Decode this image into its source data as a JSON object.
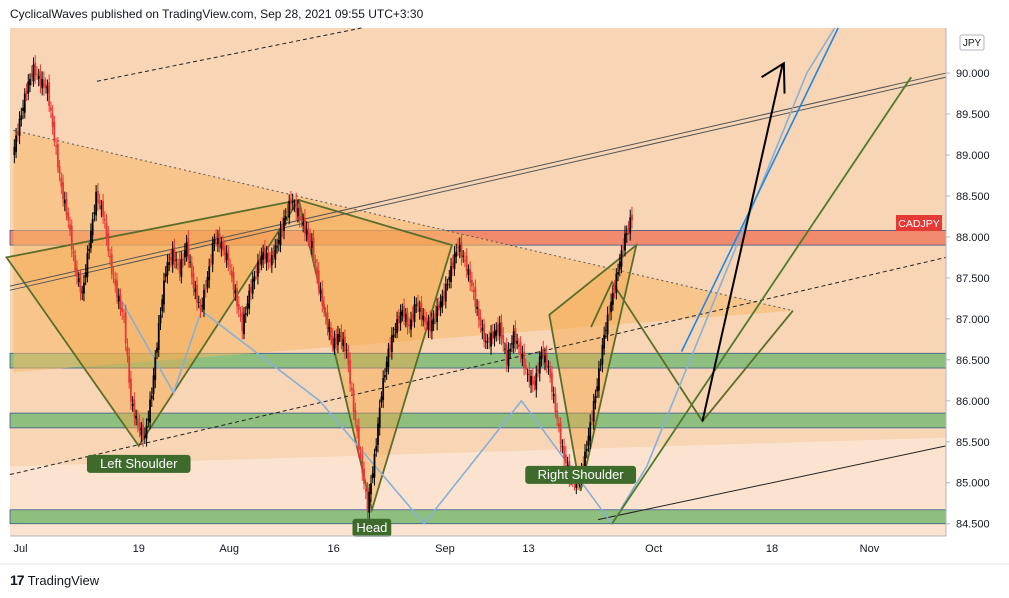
{
  "header": {
    "publisher_line": "CyclicalWaves published on TradingView.com, Sep 28, 2021 09:55 UTC+3:30"
  },
  "footer": {
    "logo_glyph": "17",
    "brand": "TradingView"
  },
  "chart_data": {
    "type": "candlestick",
    "symbol": "CADJPY",
    "currency_badge": "JPY",
    "last_price_label": "CADJPY",
    "y_ticks": [
      "90.000",
      "89.500",
      "89.000",
      "88.500",
      "88.000",
      "87.500",
      "87.000",
      "86.500",
      "86.000",
      "85.500",
      "85.000",
      "84.500"
    ],
    "y_tick_values": [
      90.0,
      89.5,
      89.0,
      88.5,
      88.0,
      87.5,
      87.0,
      86.5,
      86.0,
      85.5,
      85.0,
      84.5
    ],
    "ylim": [
      84.35,
      90.55
    ],
    "x_ticks": [
      "Jul",
      "19",
      "Aug",
      "16",
      "Sep",
      "13",
      "Oct",
      "18",
      "Nov"
    ],
    "x_tick_days": [
      0,
      18,
      31,
      46,
      62,
      74,
      92,
      109,
      123
    ],
    "xlim": [
      -0.5,
      134
    ],
    "zones": [
      {
        "name": "resistance",
        "low": 87.9,
        "high": 88.08,
        "color": "#f08a6c"
      },
      {
        "name": "support-1",
        "low": 86.4,
        "high": 86.58,
        "color": "#8fbf7f"
      },
      {
        "name": "support-2",
        "low": 85.67,
        "high": 85.85,
        "color": "#8fbf7f"
      },
      {
        "name": "support-3",
        "low": 84.5,
        "high": 84.67,
        "color": "#8fbf7f"
      }
    ],
    "pattern_labels": [
      "Left Shoulder",
      "Head",
      "Right Shoulder"
    ],
    "pattern_points": [
      {
        "label": "Left Shoulder",
        "day": 18,
        "value": 85.45
      },
      {
        "label": "Head",
        "day": 51.5,
        "value": 84.67
      },
      {
        "label": "Right Shoulder",
        "day": 81.5,
        "value": 84.9
      }
    ],
    "price_path": [
      [
        0,
        89.0
      ],
      [
        1,
        89.4
      ],
      [
        2,
        89.8
      ],
      [
        3,
        90.05
      ],
      [
        4,
        89.9
      ],
      [
        5,
        89.8
      ],
      [
        6,
        89.2
      ],
      [
        7,
        88.6
      ],
      [
        8,
        88.2
      ],
      [
        9,
        87.6
      ],
      [
        10,
        87.3
      ],
      [
        11,
        87.9
      ],
      [
        12,
        88.5
      ],
      [
        13,
        88.3
      ],
      [
        14,
        87.7
      ],
      [
        15,
        87.3
      ],
      [
        16,
        87.0
      ],
      [
        17,
        86.0
      ],
      [
        18,
        85.7
      ],
      [
        19,
        85.55
      ],
      [
        20,
        86.1
      ],
      [
        21,
        86.9
      ],
      [
        22,
        87.6
      ],
      [
        23,
        87.8
      ],
      [
        24,
        87.6
      ],
      [
        25,
        87.9
      ],
      [
        26,
        87.4
      ],
      [
        27,
        87.1
      ],
      [
        28,
        87.5
      ],
      [
        29,
        88.0
      ],
      [
        30,
        87.9
      ],
      [
        31,
        87.7
      ],
      [
        32,
        87.3
      ],
      [
        33,
        86.9
      ],
      [
        34,
        87.3
      ],
      [
        35,
        87.6
      ],
      [
        36,
        87.8
      ],
      [
        37,
        87.7
      ],
      [
        38,
        87.9
      ],
      [
        39,
        88.2
      ],
      [
        40,
        88.45
      ],
      [
        41,
        88.3
      ],
      [
        42,
        88.1
      ],
      [
        43,
        87.9
      ],
      [
        44,
        87.4
      ],
      [
        45,
        87.0
      ],
      [
        46,
        86.7
      ],
      [
        47,
        86.8
      ],
      [
        48,
        86.6
      ],
      [
        49,
        85.9
      ],
      [
        50,
        85.3
      ],
      [
        51,
        84.7
      ],
      [
        52,
        85.3
      ],
      [
        53,
        86.1
      ],
      [
        54,
        86.6
      ],
      [
        55,
        86.9
      ],
      [
        56,
        87.1
      ],
      [
        57,
        86.9
      ],
      [
        58,
        87.2
      ],
      [
        59,
        87.0
      ],
      [
        60,
        86.9
      ],
      [
        61,
        87.1
      ],
      [
        62,
        87.3
      ],
      [
        63,
        87.6
      ],
      [
        64,
        87.9
      ],
      [
        65,
        87.7
      ],
      [
        66,
        87.4
      ],
      [
        67,
        87.0
      ],
      [
        68,
        86.7
      ],
      [
        69,
        86.8
      ],
      [
        70,
        86.9
      ],
      [
        71,
        86.5
      ],
      [
        72,
        86.8
      ],
      [
        73,
        86.6
      ],
      [
        74,
        86.3
      ],
      [
        75,
        86.2
      ],
      [
        76,
        86.6
      ],
      [
        77,
        86.4
      ],
      [
        78,
        85.9
      ],
      [
        79,
        85.4
      ],
      [
        80,
        85.1
      ],
      [
        81,
        85.0
      ],
      [
        82,
        85.2
      ],
      [
        83,
        85.7
      ],
      [
        84,
        86.2
      ],
      [
        85,
        86.8
      ],
      [
        86,
        87.2
      ],
      [
        87,
        87.6
      ],
      [
        88,
        88.0
      ],
      [
        89,
        88.25
      ]
    ]
  }
}
